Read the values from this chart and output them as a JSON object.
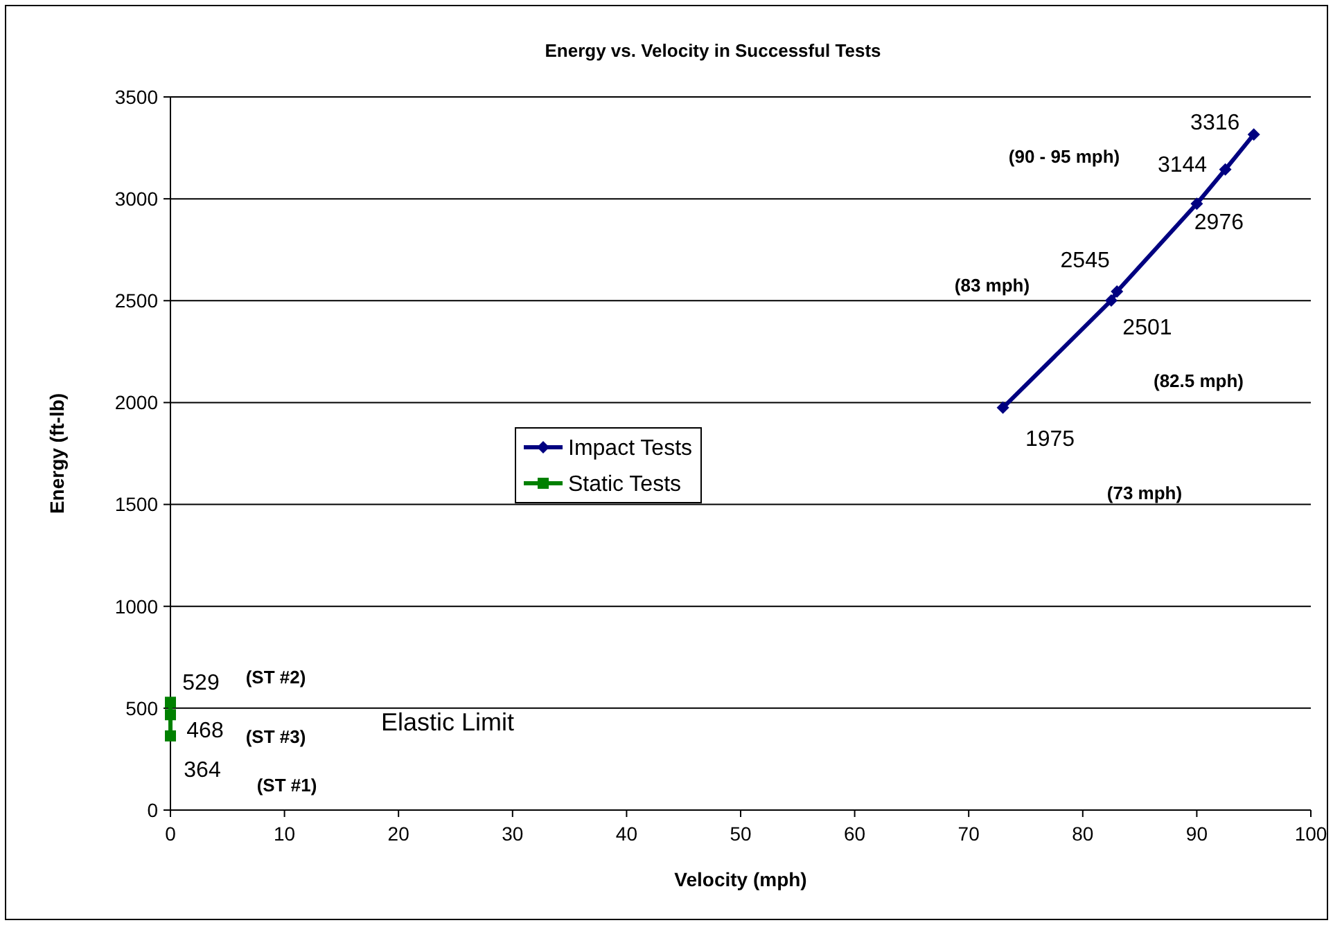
{
  "chart_data": {
    "type": "line",
    "title": "Energy vs. Velocity in Successful Tests",
    "xlabel": "Velocity (mph)",
    "ylabel": "Energy (ft-lb)",
    "xlim": [
      0,
      100
    ],
    "xticks": [
      0,
      10,
      20,
      30,
      40,
      50,
      60,
      70,
      80,
      90,
      100
    ],
    "ylim": [
      0,
      3500
    ],
    "yticks": [
      0,
      500,
      1000,
      1500,
      2000,
      2500,
      3000,
      3500
    ],
    "grid": "y",
    "legend": "left",
    "data_labels": true,
    "line_style": "solid",
    "series": [
      {
        "name": "Impact Tests",
        "color": "#000080",
        "marker": "diamond",
        "x": [
          73,
          82.5,
          83,
          90,
          92.5,
          95
        ],
        "values": [
          1975,
          2501,
          2545,
          2976,
          3144,
          3316
        ]
      },
      {
        "name": "Static Tests",
        "color": "#008000",
        "marker": "square",
        "x": [
          0,
          0,
          0
        ],
        "values": [
          364,
          529,
          468
        ]
      }
    ],
    "annotations": [
      "(73 mph)",
      "(82.5 mph)",
      "(83 mph)",
      "(90 - 95 mph)",
      "(ST #1)",
      "(ST #2)",
      "(ST #3)",
      "Elastic Limit"
    ]
  }
}
